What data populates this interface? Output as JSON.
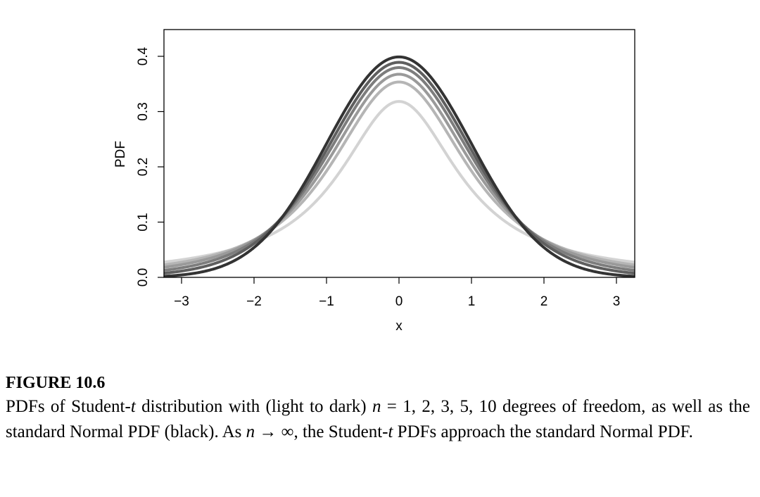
{
  "chart_data": {
    "type": "line",
    "title": "",
    "xlabel": "x",
    "ylabel": "PDF",
    "xlim": [
      -3.25,
      3.25
    ],
    "ylim": [
      0.0,
      0.45
    ],
    "x_ticks": [
      -3,
      -2,
      -1,
      0,
      1,
      2,
      3
    ],
    "x_tick_labels": [
      "−3",
      "−2",
      "−1",
      "0",
      "1",
      "2",
      "3"
    ],
    "y_ticks": [
      0.0,
      0.1,
      0.2,
      0.3,
      0.4
    ],
    "y_tick_labels": [
      "0.0",
      "0.1",
      "0.2",
      "0.3",
      "0.4"
    ],
    "grid": false,
    "legend": "none",
    "series": [
      {
        "name": "Student-t, n = 1",
        "df": 1,
        "color": "#d3d3d3",
        "peak": 0.318
      },
      {
        "name": "Student-t, n = 2",
        "df": 2,
        "color": "#b5b5b5",
        "peak": 0.354
      },
      {
        "name": "Student-t, n = 3",
        "df": 3,
        "color": "#9a9a9a",
        "peak": 0.368
      },
      {
        "name": "Student-t, n = 5",
        "df": 5,
        "color": "#7d7d7d",
        "peak": 0.38
      },
      {
        "name": "Student-t, n = 10",
        "df": 10,
        "color": "#5f5f5f",
        "peak": 0.389
      },
      {
        "name": "Standard Normal",
        "df": null,
        "color": "#333333",
        "peak": 0.399
      }
    ]
  },
  "caption": {
    "title": "FIGURE 10.6",
    "part1": "PDFs of Student-",
    "t1": "t",
    "part2": " distribution with (light to dark) ",
    "n1": "n",
    "part3": " = 1, 2, 3, 5, 10 degrees of freedom, as well as the standard Normal PDF (black). As ",
    "n2": "n",
    "arrow": " → ∞",
    "part4": ", the Student-",
    "t2": "t",
    "part5": " PDFs approach the standard Normal PDF."
  }
}
